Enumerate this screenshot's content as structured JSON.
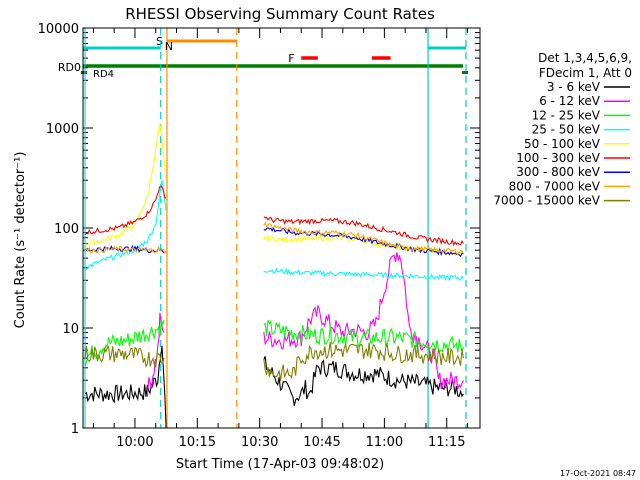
{
  "chart_data": {
    "type": "line",
    "title": "RHESSI Observing Summary Count Rates",
    "xlabel": "Start Time (17-Apr-03 09:48:02)",
    "ylabel": "Count Rate (s⁻¹ detector⁻¹)",
    "y_scale": "log",
    "ylim": [
      1,
      10000
    ],
    "xlim_minutes": [
      9.5,
      105
    ],
    "x_ticks": [
      {
        "label": "10:00",
        "t": 22
      },
      {
        "label": "10:15",
        "t": 37
      },
      {
        "label": "10:30",
        "t": 52
      },
      {
        "label": "10:45",
        "t": 67
      },
      {
        "label": "11:00",
        "t": 82
      },
      {
        "label": "11:15",
        "t": 97
      }
    ],
    "y_ticks": [
      {
        "label": "1",
        "v": 1
      },
      {
        "label": "10",
        "v": 10
      },
      {
        "label": "100",
        "v": 100
      },
      {
        "label": "1000",
        "v": 1000
      },
      {
        "label": "10000",
        "v": 10000
      }
    ],
    "legend_header": [
      "Det 1,3,4,5,6,9,",
      "FDecim 1, Att 0"
    ],
    "series": [
      {
        "name": "3 - 6 keV",
        "color": "#000000",
        "x": [
          10,
          20,
          25,
          27.5,
          28.5,
          29.5,
          53,
          55,
          58,
          60,
          62,
          63,
          64,
          66,
          70,
          75,
          80,
          85,
          90,
          95,
          99,
          101
        ],
        "y": [
          2.2,
          2.2,
          2.3,
          3.2,
          8,
          1,
          4.5,
          3.5,
          2.5,
          2,
          2.2,
          2.5,
          2.2,
          4,
          4,
          3.5,
          3.5,
          3,
          2.8,
          2.5,
          2.5,
          2.2
        ]
      },
      {
        "name": "6 - 12 keV",
        "color": "#ff00ff",
        "x": [
          25,
          26,
          27.5,
          28,
          29,
          53,
          57,
          62,
          64,
          66,
          69,
          72,
          75,
          78,
          80,
          82,
          84,
          85,
          86,
          87,
          88,
          90,
          94,
          95,
          99,
          101
        ],
        "y": [
          2.5,
          3,
          6,
          12,
          9,
          8,
          7.5,
          8,
          12,
          14,
          11,
          9,
          9.5,
          9,
          11,
          25,
          50,
          58,
          50,
          25,
          10,
          8,
          5,
          3,
          3,
          3
        ]
      },
      {
        "name": "12 - 25 keV",
        "color": "#00ff00",
        "x": [
          10,
          15,
          20,
          25,
          28,
          29,
          53,
          60,
          65,
          70,
          75,
          80,
          85,
          90,
          95,
          101
        ],
        "y": [
          5,
          7,
          7.5,
          9,
          10,
          12,
          10,
          9,
          8.5,
          8.5,
          8,
          8,
          8,
          7.5,
          7,
          6.5
        ]
      },
      {
        "name": "25 - 50 keV",
        "color": "#00ffff",
        "x": [
          10,
          13,
          16,
          19,
          22,
          25,
          27,
          28.5,
          29.5,
          53,
          57,
          60,
          70,
          80,
          90,
          95,
          100,
          101
        ],
        "y": [
          40,
          45,
          50,
          55,
          60,
          75,
          110,
          300,
          150,
          38,
          37,
          36,
          35,
          34,
          33,
          32,
          32,
          31
        ]
      },
      {
        "name": "50 - 100 keV",
        "color": "#ffff00",
        "x": [
          10,
          14,
          18,
          22,
          25,
          27,
          28,
          29.5,
          53,
          57,
          65,
          70,
          75,
          80,
          85,
          90,
          95,
          101
        ],
        "y": [
          70,
          75,
          85,
          110,
          200,
          600,
          1100,
          300,
          80,
          76,
          78,
          80,
          78,
          70,
          65,
          62,
          58,
          55
        ]
      },
      {
        "name": "100 - 300 keV",
        "color": "#ff0000",
        "x": [
          10,
          14,
          18,
          22,
          25,
          27,
          28,
          29.5,
          53,
          55,
          60,
          65,
          70,
          75,
          80,
          85,
          90,
          95,
          101
        ],
        "y": [
          90,
          95,
          100,
          115,
          140,
          190,
          270,
          200,
          130,
          120,
          115,
          118,
          118,
          112,
          100,
          90,
          80,
          75,
          70
        ]
      },
      {
        "name": "300 - 800 keV",
        "color": "#0000ff",
        "x": [
          10,
          14,
          18,
          22,
          25,
          28,
          29.5,
          53,
          60,
          65,
          70,
          75,
          80,
          85,
          90,
          95,
          101
        ],
        "y": [
          60,
          62,
          62,
          62,
          60,
          60,
          58,
          100,
          90,
          88,
          85,
          80,
          72,
          66,
          60,
          58,
          55
        ]
      },
      {
        "name": "800 - 7000 keV",
        "color": "#ffa500",
        "x": [
          10,
          14,
          18,
          22,
          25,
          28,
          29.5,
          53,
          57,
          60,
          65,
          70,
          75,
          80,
          85,
          90,
          95,
          101
        ],
        "y": [
          60,
          60,
          62,
          60,
          60,
          60,
          58,
          110,
          100,
          95,
          90,
          90,
          85,
          75,
          65,
          62,
          60,
          58
        ]
      },
      {
        "name": "7000 - 15000 keV",
        "color": "#808000",
        "x": [
          10,
          15,
          20,
          25,
          28,
          29,
          53,
          55,
          60,
          62,
          65,
          70,
          75,
          80,
          85,
          90,
          95,
          101
        ],
        "y": [
          5.5,
          5.5,
          5.5,
          5,
          5,
          5,
          4.5,
          3.5,
          3.5,
          5,
          6,
          6,
          6,
          6,
          5.5,
          5.5,
          5.2,
          5
        ]
      }
    ],
    "flags": [
      {
        "label": "RD0",
        "color": "#008000"
      },
      {
        "label": "RD4",
        "color": "#008000"
      },
      {
        "label": "S",
        "color": "#ff8c00"
      },
      {
        "label": "N",
        "color": "#00cccc"
      },
      {
        "label": "F",
        "color": "#ff0000"
      }
    ],
    "timestamp": "17-Oct-2021 08:47"
  }
}
